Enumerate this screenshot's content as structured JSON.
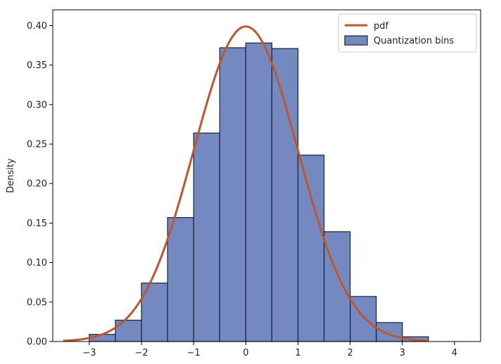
{
  "chart_data": {
    "type": "bar",
    "ylabel": "Density",
    "xlabel": "",
    "xlim": [
      -3.7,
      4.5
    ],
    "ylim": [
      0,
      0.42
    ],
    "x_ticks": [
      -3,
      -2,
      -1,
      0,
      1,
      2,
      3,
      4
    ],
    "y_ticks": [
      0.0,
      0.05,
      0.1,
      0.15,
      0.2,
      0.25,
      0.3,
      0.35,
      0.4
    ],
    "y_tick_labels": [
      "0.00",
      "0.05",
      "0.10",
      "0.15",
      "0.20",
      "0.25",
      "0.30",
      "0.35",
      "0.40"
    ],
    "x_tick_labels": [
      "−3",
      "−2",
      "−1",
      "0",
      "1",
      "2",
      "3",
      "4"
    ],
    "bin_width": 0.5,
    "bins": [
      {
        "left": -3.0,
        "value": 0.009
      },
      {
        "left": -2.5,
        "value": 0.027
      },
      {
        "left": -2.0,
        "value": 0.074
      },
      {
        "left": -1.5,
        "value": 0.157
      },
      {
        "left": -1.0,
        "value": 0.264
      },
      {
        "left": -0.5,
        "value": 0.372
      },
      {
        "left": 0.0,
        "value": 0.378
      },
      {
        "left": 0.5,
        "value": 0.371
      },
      {
        "left": 1.0,
        "value": 0.236
      },
      {
        "left": 1.5,
        "value": 0.139
      },
      {
        "left": 2.0,
        "value": 0.057
      },
      {
        "left": 2.5,
        "value": 0.024
      },
      {
        "left": 3.0,
        "value": 0.006
      }
    ],
    "pdf": {
      "mean": 0,
      "std": 1,
      "x_range": [
        -3.5,
        3.5
      ]
    },
    "series": [
      {
        "name": "pdf",
        "kind": "line",
        "color": "#c0562f"
      },
      {
        "name": "Quantization bins",
        "kind": "bar",
        "color": "#7389bf",
        "edge": "#14213d"
      }
    ],
    "legend_position": "top-right",
    "grid": false
  }
}
